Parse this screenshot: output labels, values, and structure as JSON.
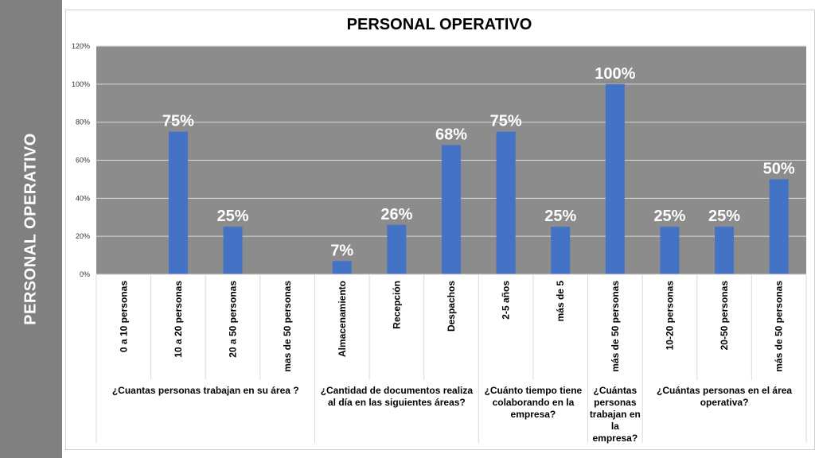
{
  "slide": {
    "side_title": "PERSONAL OPERATIVO"
  },
  "chart_data": {
    "type": "bar",
    "title": "PERSONAL OPERATIVO",
    "ylim": [
      0,
      120
    ],
    "yticks": [
      "0%",
      "20%",
      "40%",
      "60%",
      "80%",
      "100%",
      "120%"
    ],
    "grid": true,
    "categories": [
      "0 a 10 personas",
      "10 a 20 personas",
      "20 a 50 personas",
      "mas de 50 personas",
      "Almacenamiento",
      "Recepción",
      "Despachos",
      "2-5 años",
      "más de 5",
      "más de 50 personas",
      "10-20 personas",
      "20-50 personas",
      "más de 50 personas"
    ],
    "values": [
      null,
      75,
      25,
      null,
      7,
      26,
      68,
      75,
      25,
      100,
      25,
      25,
      50
    ],
    "data_labels": [
      "",
      "75%",
      "25%",
      "",
      "7%",
      "26%",
      "68%",
      "75%",
      "25%",
      "100%",
      "25%",
      "25%",
      "50%"
    ],
    "groups": [
      {
        "label": "¿Cuantas personas trabajan en su área ?",
        "start": 0,
        "end": 3
      },
      {
        "label": "¿Cantidad de  documentos realiza al día en las siguientes áreas?",
        "start": 4,
        "end": 6
      },
      {
        "label": "¿Cuánto tiempo tiene colaborando en la empresa?",
        "start": 7,
        "end": 8
      },
      {
        "label": "¿Cuántas personas trabajan en la empresa?",
        "start": 9,
        "end": 9
      },
      {
        "label": "¿Cuántas personas en el área operativa?",
        "start": 10,
        "end": 12
      }
    ],
    "colors": {
      "plot_bg": "#8c8c8c",
      "bar": "#4472c4",
      "grid": "#d9d9d9",
      "label": "#ffffff"
    }
  }
}
